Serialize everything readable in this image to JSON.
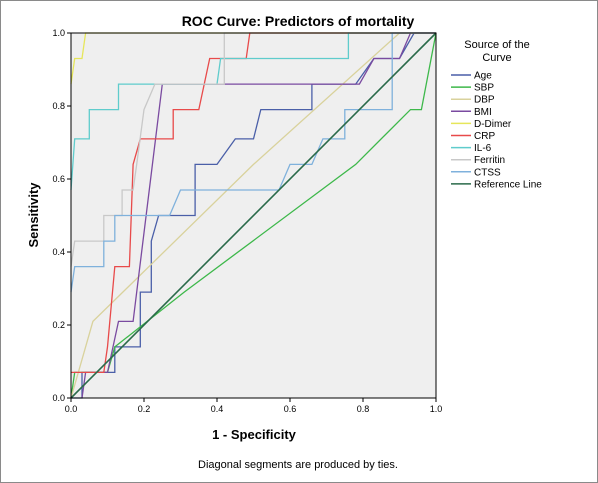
{
  "chart_data": {
    "type": "line",
    "title": "ROC Curve: Predictors of mortality",
    "xlabel": "1 - Specificity",
    "ylabel": "Sensitivity",
    "footnote": "Diagonal segments are produced by ties.",
    "xlim": [
      0,
      1
    ],
    "ylim": [
      0,
      1
    ],
    "xticks": [
      "0.0",
      "0.2",
      "0.4",
      "0.6",
      "0.8",
      "1.0"
    ],
    "yticks": [
      "0.0",
      "0.2",
      "0.4",
      "0.6",
      "0.8",
      "1.0"
    ],
    "grid": false,
    "background": "#efefef",
    "legend": {
      "title_line1": "Source of the",
      "title_line2": "Curve",
      "placement": "right"
    },
    "series": [
      {
        "name": "Age",
        "color": "#4a5fa8",
        "points": [
          [
            0,
            0
          ],
          [
            0.03,
            0
          ],
          [
            0.03,
            0.07
          ],
          [
            0.12,
            0.07
          ],
          [
            0.12,
            0.14
          ],
          [
            0.19,
            0.14
          ],
          [
            0.19,
            0.29
          ],
          [
            0.22,
            0.29
          ],
          [
            0.22,
            0.43
          ],
          [
            0.24,
            0.5
          ],
          [
            0.34,
            0.5
          ],
          [
            0.34,
            0.64
          ],
          [
            0.4,
            0.64
          ],
          [
            0.45,
            0.71
          ],
          [
            0.5,
            0.71
          ],
          [
            0.52,
            0.79
          ],
          [
            0.61,
            0.79
          ],
          [
            0.66,
            0.79
          ],
          [
            0.66,
            0.86
          ],
          [
            0.78,
            0.86
          ],
          [
            0.83,
            0.93
          ],
          [
            0.9,
            0.93
          ],
          [
            0.94,
            1
          ],
          [
            1,
            1
          ]
        ]
      },
      {
        "name": "SBP",
        "color": "#3db84a",
        "points": [
          [
            0,
            0
          ],
          [
            0.01,
            0.07
          ],
          [
            0.1,
            0.07
          ],
          [
            0.12,
            0.14
          ],
          [
            0.31,
            0.29
          ],
          [
            0.78,
            0.64
          ],
          [
            0.93,
            0.79
          ],
          [
            0.96,
            0.79
          ],
          [
            1,
            1
          ]
        ]
      },
      {
        "name": "DBP",
        "color": "#d9d29c",
        "points": [
          [
            0,
            0
          ],
          [
            0.06,
            0.21
          ],
          [
            0.5,
            0.64
          ],
          [
            0.9,
            1
          ],
          [
            1,
            1
          ]
        ]
      },
      {
        "name": "BMI",
        "color": "#7a4aa0",
        "points": [
          [
            0.03,
            0
          ],
          [
            0.04,
            0.07
          ],
          [
            0.1,
            0.07
          ],
          [
            0.13,
            0.21
          ],
          [
            0.17,
            0.21
          ],
          [
            0.18,
            0.29
          ],
          [
            0.25,
            0.86
          ],
          [
            0.79,
            0.86
          ],
          [
            0.83,
            0.93
          ],
          [
            0.9,
            0.93
          ],
          [
            0.93,
            1
          ],
          [
            1,
            1
          ]
        ]
      },
      {
        "name": "D-Dimer",
        "color": "#e6e65a",
        "points": [
          [
            0,
            0.86
          ],
          [
            0.01,
            0.93
          ],
          [
            0.03,
            0.93
          ],
          [
            0.04,
            1
          ],
          [
            1,
            1
          ]
        ]
      },
      {
        "name": "CRP",
        "color": "#e84a4a",
        "points": [
          [
            0,
            0.07
          ],
          [
            0.09,
            0.07
          ],
          [
            0.1,
            0.14
          ],
          [
            0.12,
            0.36
          ],
          [
            0.16,
            0.36
          ],
          [
            0.17,
            0.64
          ],
          [
            0.19,
            0.71
          ],
          [
            0.28,
            0.71
          ],
          [
            0.28,
            0.79
          ],
          [
            0.35,
            0.79
          ],
          [
            0.38,
            0.93
          ],
          [
            0.48,
            0.93
          ],
          [
            0.49,
            1
          ],
          [
            1,
            1
          ]
        ]
      },
      {
        "name": "IL-6",
        "color": "#5fcccc",
        "points": [
          [
            0,
            0.57
          ],
          [
            0.01,
            0.71
          ],
          [
            0.05,
            0.71
          ],
          [
            0.05,
            0.79
          ],
          [
            0.13,
            0.79
          ],
          [
            0.13,
            0.86
          ],
          [
            0.4,
            0.86
          ],
          [
            0.41,
            0.93
          ],
          [
            0.76,
            0.93
          ],
          [
            0.76,
            1
          ],
          [
            1,
            1
          ]
        ]
      },
      {
        "name": "Ferritin",
        "color": "#c8c8c8",
        "points": [
          [
            0,
            0.36
          ],
          [
            0.01,
            0.43
          ],
          [
            0.09,
            0.43
          ],
          [
            0.09,
            0.5
          ],
          [
            0.14,
            0.5
          ],
          [
            0.14,
            0.57
          ],
          [
            0.17,
            0.57
          ],
          [
            0.18,
            0.64
          ],
          [
            0.2,
            0.79
          ],
          [
            0.23,
            0.86
          ],
          [
            0.42,
            0.86
          ],
          [
            0.42,
            1
          ],
          [
            1,
            1
          ]
        ]
      },
      {
        "name": "CTSS",
        "color": "#7fb1dc",
        "points": [
          [
            0,
            0.29
          ],
          [
            0.01,
            0.36
          ],
          [
            0.09,
            0.36
          ],
          [
            0.09,
            0.43
          ],
          [
            0.12,
            0.43
          ],
          [
            0.12,
            0.5
          ],
          [
            0.27,
            0.5
          ],
          [
            0.3,
            0.57
          ],
          [
            0.57,
            0.57
          ],
          [
            0.6,
            0.64
          ],
          [
            0.66,
            0.64
          ],
          [
            0.69,
            0.71
          ],
          [
            0.75,
            0.71
          ],
          [
            0.75,
            0.79
          ],
          [
            0.88,
            0.79
          ],
          [
            0.88,
            1
          ],
          [
            1,
            1
          ]
        ]
      },
      {
        "name": "Reference Line",
        "color": "#2a6a4a",
        "points": [
          [
            0,
            0
          ],
          [
            1,
            1
          ]
        ]
      }
    ]
  }
}
